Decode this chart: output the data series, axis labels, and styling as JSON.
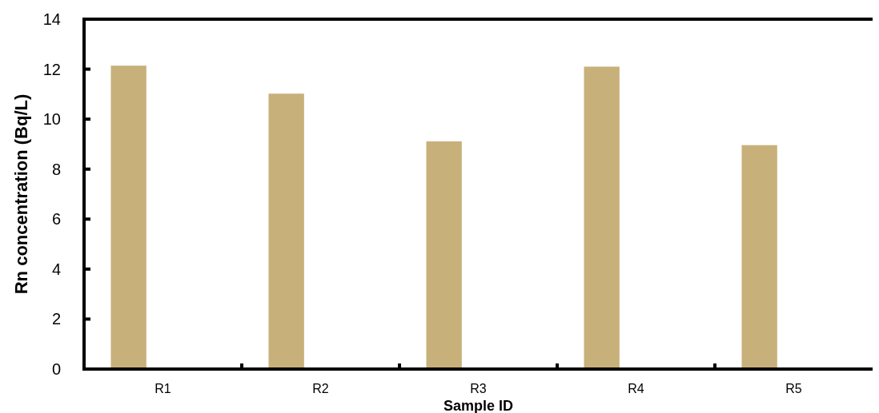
{
  "chart_data": {
    "type": "bar",
    "xlabel": "Sample ID",
    "ylabel": "Rn concentration (Bq/L)",
    "categories": [
      "R1",
      "R2",
      "R3",
      "R4",
      "R5"
    ],
    "values": [
      12.14,
      11.02,
      9.11,
      12.1,
      8.96
    ],
    "color": "#c8b07a",
    "ylim": [
      0,
      14
    ],
    "yticks": [
      0,
      2,
      4,
      6,
      8,
      10,
      12,
      14
    ],
    "grid": false
  }
}
